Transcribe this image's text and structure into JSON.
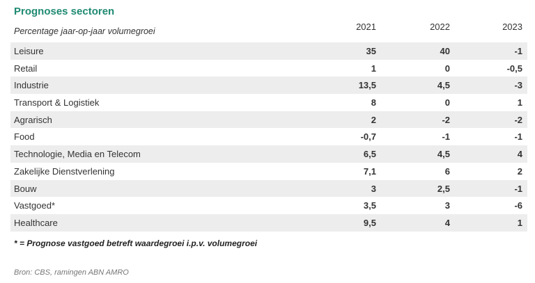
{
  "title": "Prognoses sectoren",
  "subtitle": "Percentage jaar-op-jaar volumegroei",
  "columns": [
    "2021",
    "2022",
    "2023"
  ],
  "rows": [
    {
      "sector": "Leisure",
      "values": [
        "35",
        "40",
        "-1"
      ]
    },
    {
      "sector": "Retail",
      "values": [
        "1",
        "0",
        "-0,5"
      ]
    },
    {
      "sector": "Industrie",
      "values": [
        "13,5",
        "4,5",
        "-3"
      ]
    },
    {
      "sector": "Transport & Logistiek",
      "values": [
        "8",
        "0",
        "1"
      ]
    },
    {
      "sector": "Agrarisch",
      "values": [
        "2",
        "-2",
        "-2"
      ]
    },
    {
      "sector": "Food",
      "values": [
        "-0,7",
        "-1",
        "-1"
      ]
    },
    {
      "sector": "Technologie, Media en Telecom",
      "values": [
        "6,5",
        "4,5",
        "4"
      ]
    },
    {
      "sector": "Zakelijke Dienstverlening",
      "values": [
        "7,1",
        "6",
        "2"
      ]
    },
    {
      "sector": "Bouw",
      "values": [
        "3",
        "2,5",
        "-1"
      ]
    },
    {
      "sector": "Vastgoed*",
      "values": [
        "3,5",
        "3",
        "-6"
      ]
    },
    {
      "sector": "Healthcare",
      "values": [
        "9,5",
        "4",
        "1"
      ]
    }
  ],
  "footnote": "* = Prognose vastgoed betreft waardegroei i.p.v. volumegroei",
  "source": "Bron: CBS, ramingen ABN AMRO",
  "colors": {
    "title": "#1f8a72",
    "row_shade": "#ededed"
  }
}
